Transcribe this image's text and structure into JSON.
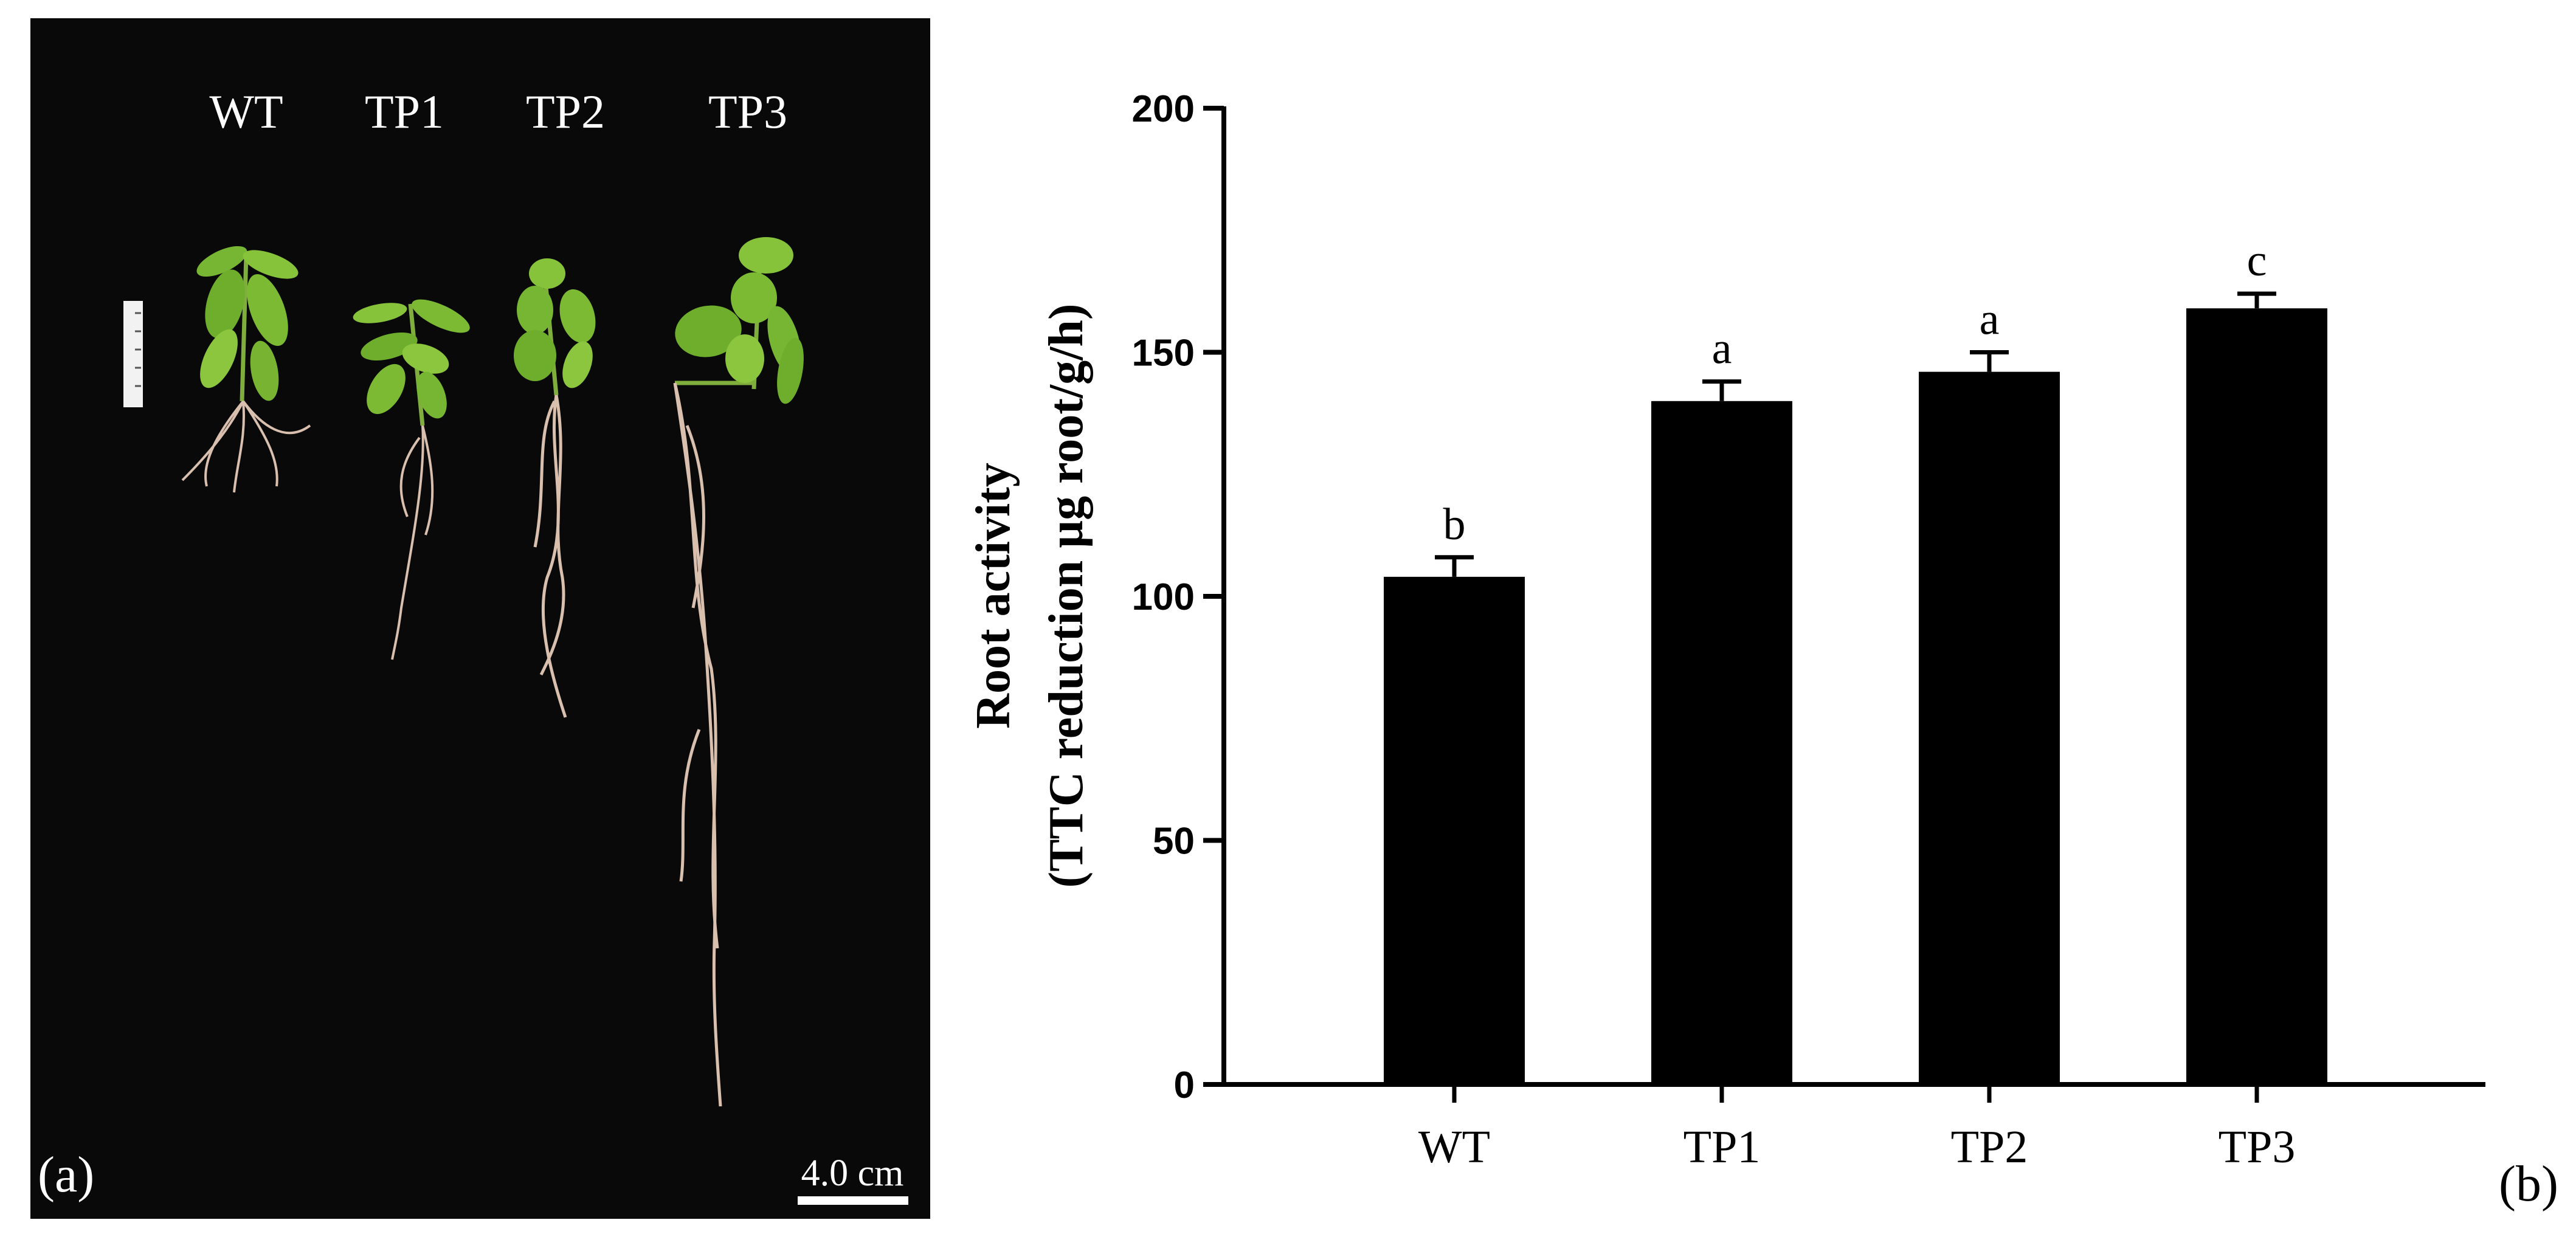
{
  "figure": {
    "panel_a": {
      "label": "(a)",
      "lines": [
        "WT",
        "TP1",
        "TP2",
        "TP3"
      ],
      "scale_bar_label": "4.0 cm"
    },
    "panel_b": {
      "label": "(b)"
    }
  },
  "chart_data": {
    "type": "bar",
    "title": "",
    "categories": [
      "WT",
      "TP1",
      "TP2",
      "TP3"
    ],
    "series": [
      {
        "values": [
          104,
          140,
          146,
          159
        ],
        "errors": [
          4,
          4,
          4,
          3
        ],
        "significance": [
          "b",
          "a",
          "a",
          "c"
        ]
      }
    ],
    "xlabel": "",
    "ylabel_line1": "Root activity",
    "ylabel_line2": "(TTC reduction µg root/g/h)",
    "ylim": [
      0,
      200
    ],
    "yticks": [
      "0",
      "50",
      "100",
      "150",
      "200"
    ],
    "grid": false,
    "legend": "none",
    "bar_color": "#000000"
  }
}
